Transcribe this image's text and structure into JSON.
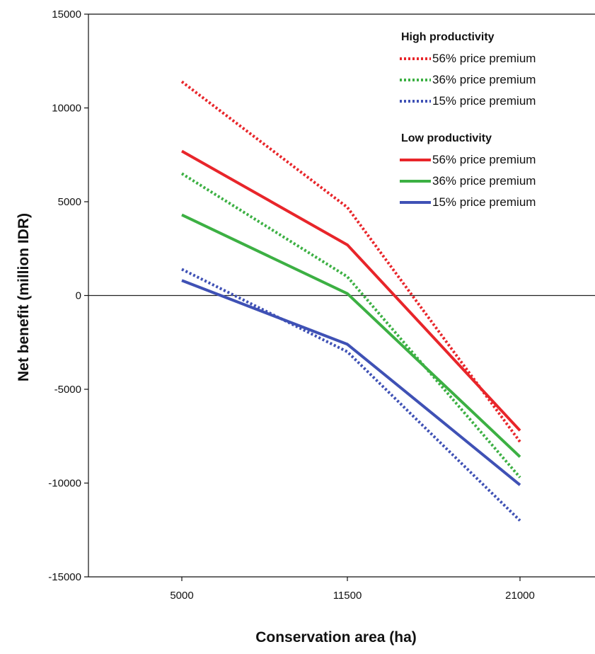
{
  "chart_data": {
    "type": "line",
    "title": "",
    "xlabel": "Conservation area (ha)",
    "ylabel": "Net benefit (million IDR)",
    "categories": [
      "5000",
      "11500",
      "21000"
    ],
    "yticks": [
      "15000",
      "10000",
      "5000",
      "0",
      "-5000",
      "-10000",
      "-15000"
    ],
    "ylim": [
      -15000,
      15000
    ],
    "reference_line_y": 0,
    "grid": false,
    "legend_position": "top-right",
    "legend_groups": [
      {
        "heading": "High productivity",
        "series": [
          0,
          1,
          2
        ]
      },
      {
        "heading": "Low productivity",
        "series": [
          3,
          4,
          5
        ]
      }
    ],
    "series": [
      {
        "name": "56% price premium",
        "group": "High productivity",
        "style": "dotted",
        "color": "#e8252a",
        "values": [
          11400,
          4700,
          -7800
        ]
      },
      {
        "name": "36% price premium",
        "group": "High productivity",
        "style": "dotted",
        "color": "#3cb043",
        "values": [
          6500,
          1000,
          -9700
        ]
      },
      {
        "name": "15% price premium",
        "group": "High productivity",
        "style": "dotted",
        "color": "#3f51b5",
        "values": [
          1400,
          -3000,
          -12000
        ]
      },
      {
        "name": "56% price premium",
        "group": "Low productivity",
        "style": "solid",
        "color": "#e8252a",
        "values": [
          7700,
          2700,
          -7200
        ]
      },
      {
        "name": "36% price premium",
        "group": "Low productivity",
        "style": "solid",
        "color": "#3cb043",
        "values": [
          4300,
          100,
          -8600
        ]
      },
      {
        "name": "15% price premium",
        "group": "Low productivity",
        "style": "solid",
        "color": "#3f51b5",
        "values": [
          800,
          -2600,
          -10100
        ]
      }
    ]
  }
}
